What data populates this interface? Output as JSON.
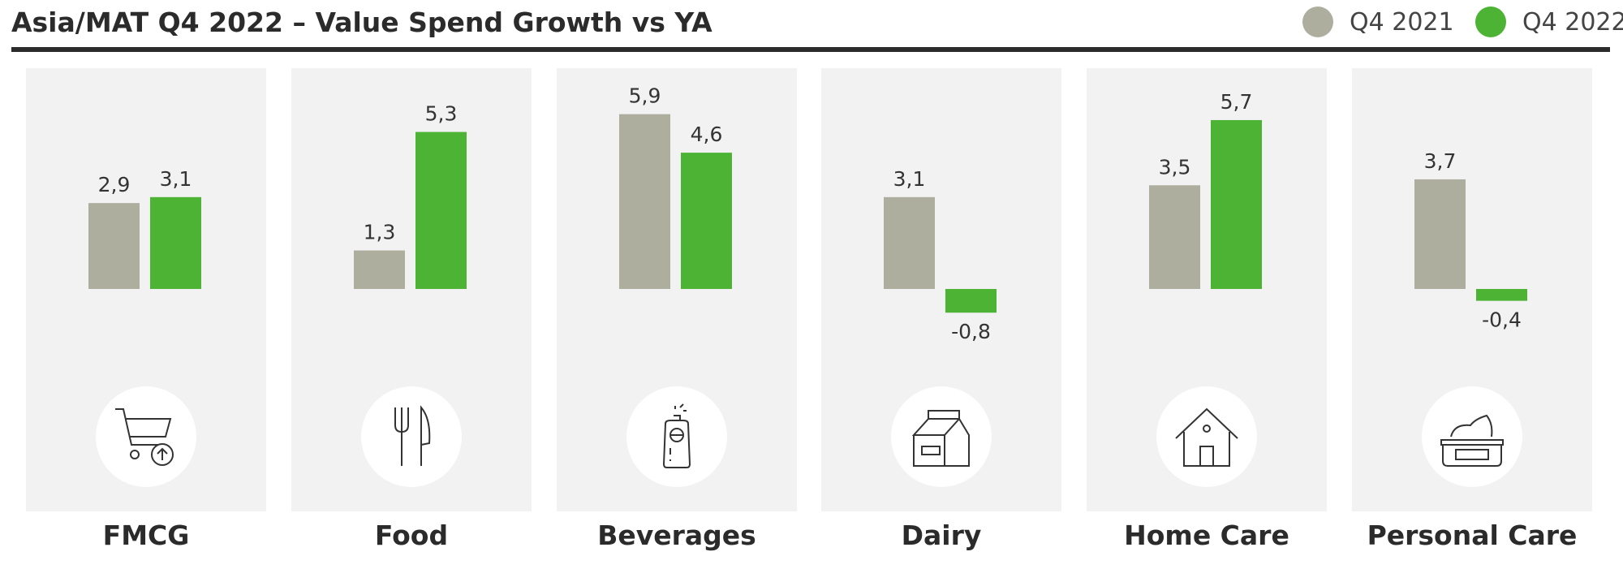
{
  "colors": {
    "q4_2021": "#aeae9f",
    "q4_2022": "#4db334",
    "panel": "#f2f2f2",
    "text": "#2b2b2b"
  },
  "chart_data": {
    "type": "bar",
    "title": "Asia/MAT Q4 2022 – Value Spend Growth vs YA",
    "categories": [
      "FMCG",
      "Food",
      "Beverages",
      "Dairy",
      "Home Care",
      "Personal Care"
    ],
    "icons": [
      "cart-icon",
      "fork-knife-icon",
      "drink-can-icon",
      "milk-carton-icon",
      "house-icon",
      "cream-jar-icon"
    ],
    "series": [
      {
        "name": "Q4 2021",
        "values": [
          2.9,
          1.3,
          5.9,
          3.1,
          3.5,
          3.7
        ],
        "labels": [
          "2,9",
          "1,3",
          "5,9",
          "3,1",
          "3,5",
          "3,7"
        ]
      },
      {
        "name": "Q4 2022",
        "values": [
          3.1,
          5.3,
          4.6,
          -0.8,
          5.7,
          -0.4
        ],
        "labels": [
          "3,1",
          "5,3",
          "4,6",
          "-0,8",
          "5,7",
          "-0,4"
        ]
      }
    ],
    "legend_position": "top-right",
    "grid": false
  }
}
